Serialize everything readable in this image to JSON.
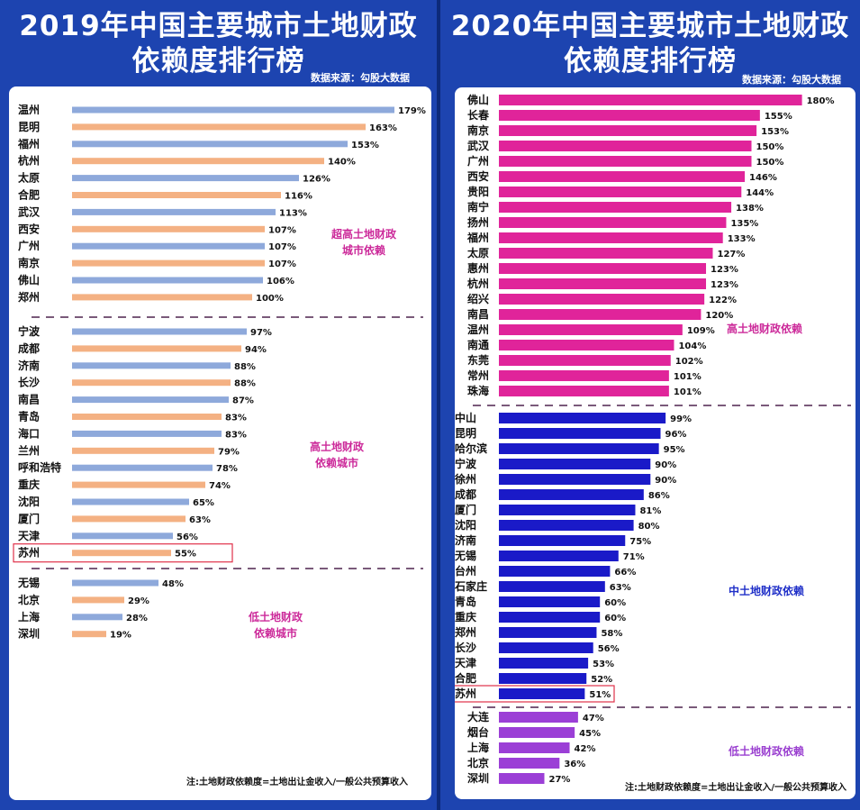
{
  "left": {
    "title_line1": "2019年中国主要城市土地财政",
    "title_line2": "依赖度排行榜",
    "source": "数据来源：勾股大数据",
    "note": "注:土地财政依赖度=土地出让金收入/一般公共预算收入",
    "group_labels": [
      [
        "超高土地财政",
        "城市依赖"
      ],
      [
        "高土地财政",
        "依赖城市"
      ],
      [
        "低土地财政",
        "依赖城市"
      ]
    ],
    "highlight": "苏州"
  },
  "right": {
    "title_line1": "2020年中国主要城市土地财政",
    "title_line2": "依赖度排行榜",
    "source": "数据来源：勾股大数据",
    "note": "注:土地财政依赖度=土地出让金收入/一般公共预算收入",
    "group_labels": [
      "高土地财政依赖",
      "中土地财政依赖",
      "低土地财政依赖"
    ],
    "highlight": "苏州"
  },
  "colors": {
    "left_blue": "#8ea9db",
    "left_orange": "#f4b183",
    "right_magenta": "#e0249a",
    "right_blue": "#1a1ac8",
    "right_purple": "#9b3fd6",
    "highlight_box": "#e0314a"
  },
  "chart_data": [
    {
      "type": "bar",
      "orientation": "horizontal",
      "title": "2019年中国主要城市土地财政依赖度排行榜",
      "unit": "%",
      "groups": [
        {
          "label": "超高土地财政城市依赖",
          "categories": [
            "温州",
            "昆明",
            "福州",
            "杭州",
            "太原",
            "合肥",
            "武汉",
            "西安",
            "广州",
            "南京",
            "佛山",
            "郑州"
          ],
          "values": [
            179,
            163,
            153,
            140,
            126,
            116,
            113,
            107,
            107,
            107,
            106,
            100
          ]
        },
        {
          "label": "高土地财政依赖城市",
          "categories": [
            "宁波",
            "成都",
            "济南",
            "长沙",
            "南昌",
            "青岛",
            "海口",
            "兰州",
            "呼和浩特",
            "重庆",
            "沈阳",
            "厦门",
            "天津",
            "苏州"
          ],
          "values": [
            97,
            94,
            88,
            88,
            87,
            83,
            83,
            79,
            78,
            74,
            65,
            63,
            56,
            55
          ]
        },
        {
          "label": "低土地财政依赖城市",
          "categories": [
            "无锡",
            "北京",
            "上海",
            "深圳"
          ],
          "values": [
            48,
            29,
            28,
            19
          ]
        }
      ]
    },
    {
      "type": "bar",
      "orientation": "horizontal",
      "title": "2020年中国主要城市土地财政依赖度排行榜",
      "unit": "%",
      "groups": [
        {
          "label": "高土地财政依赖",
          "categories": [
            "佛山",
            "长春",
            "南京",
            "武汉",
            "广州",
            "西安",
            "贵阳",
            "南宁",
            "扬州",
            "福州",
            "太原",
            "惠州",
            "杭州",
            "绍兴",
            "南昌",
            "温州",
            "南通",
            "东莞",
            "常州",
            "珠海"
          ],
          "values": [
            180,
            155,
            153,
            150,
            150,
            146,
            144,
            138,
            135,
            133,
            127,
            123,
            123,
            122,
            120,
            109,
            104,
            102,
            101,
            101
          ]
        },
        {
          "label": "中土地财政依赖",
          "categories": [
            "中山",
            "昆明",
            "哈尔滨",
            "宁波",
            "徐州",
            "成都",
            "厦门",
            "沈阳",
            "济南",
            "无锡",
            "台州",
            "石家庄",
            "青岛",
            "重庆",
            "郑州",
            "长沙",
            "天津",
            "合肥",
            "苏州"
          ],
          "values": [
            99,
            96,
            95,
            90,
            90,
            86,
            81,
            80,
            75,
            71,
            66,
            63,
            60,
            60,
            58,
            56,
            53,
            52,
            51
          ]
        },
        {
          "label": "低土地财政依赖",
          "categories": [
            "大连",
            "烟台",
            "上海",
            "北京",
            "深圳"
          ],
          "values": [
            47,
            45,
            42,
            36,
            27
          ]
        }
      ]
    }
  ]
}
